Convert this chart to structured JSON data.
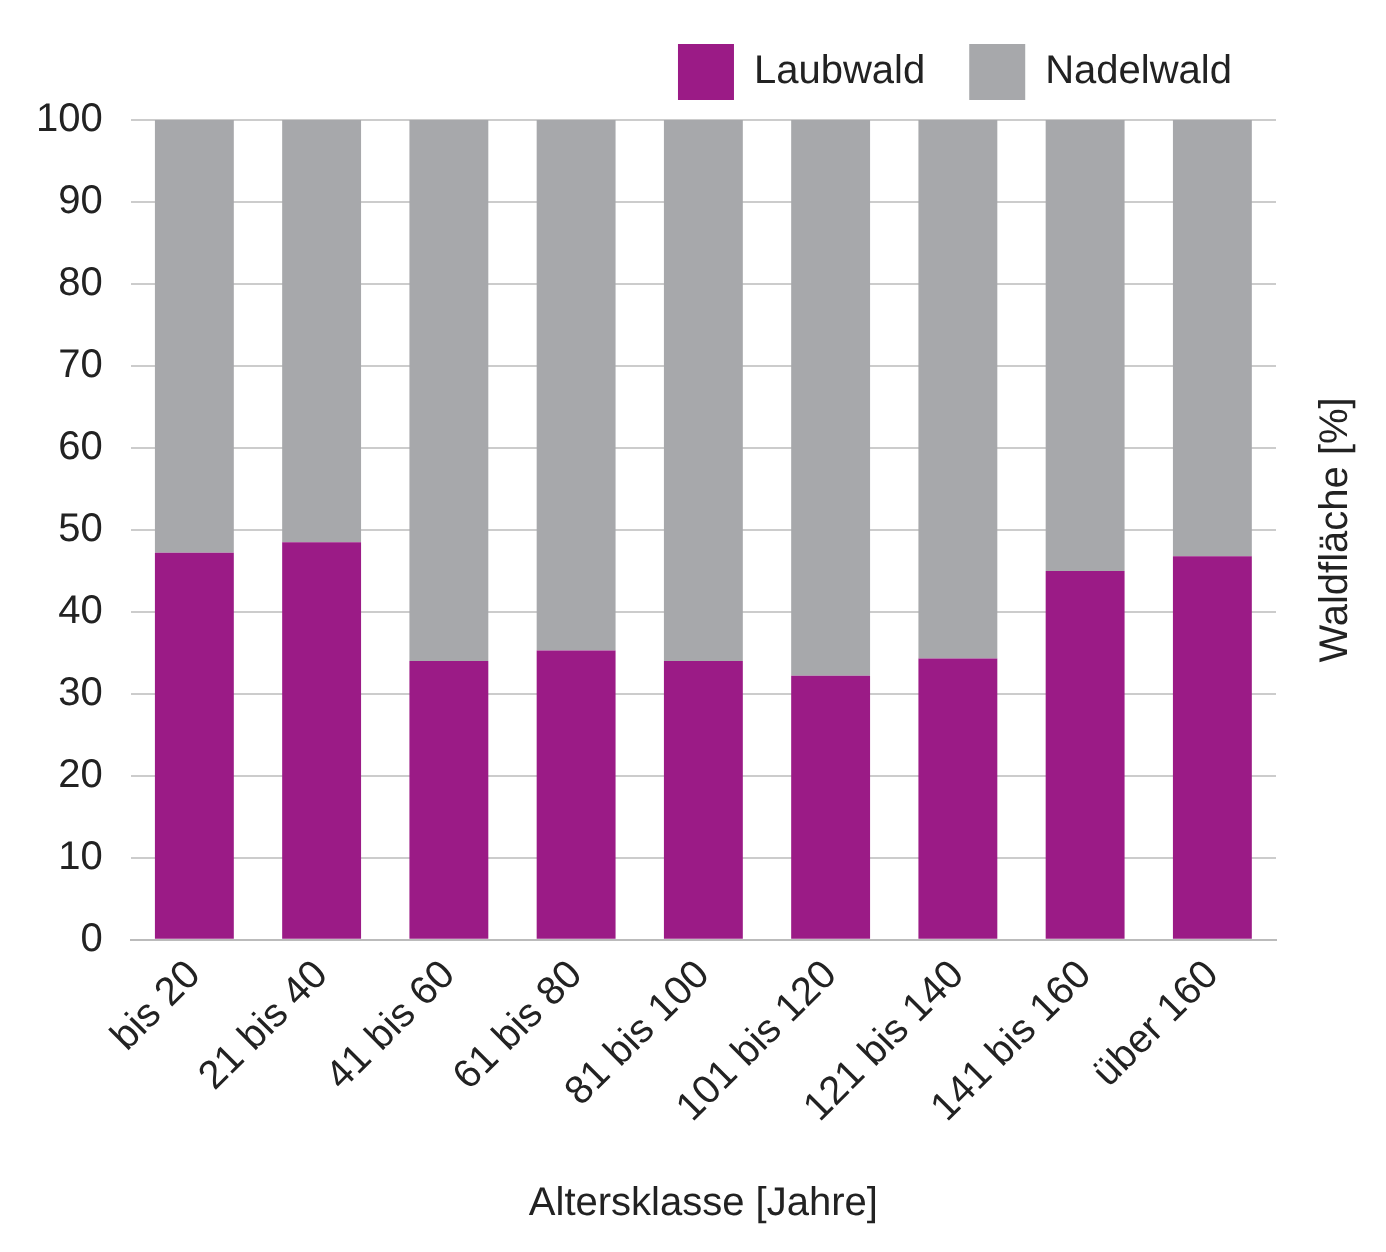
{
  "chart_data": {
    "type": "bar",
    "stacked": true,
    "xlabel": "Altersklasse [Jahre]",
    "ylabel": "Waldfläche [%]",
    "categories": [
      "bis 20",
      "21 bis 40",
      "41 bis 60",
      "61 bis 80",
      "81 bis 100",
      "101 bis 120",
      "121 bis 140",
      "141 bis 160",
      "über 160"
    ],
    "series": [
      {
        "name": "Laubwald",
        "color": "#9b1b86",
        "values": [
          47.2,
          48.5,
          34.0,
          35.3,
          34.0,
          32.2,
          34.3,
          45.0,
          46.8
        ]
      },
      {
        "name": "Nadelwald",
        "color": "#a7a8ab",
        "values": [
          52.8,
          51.5,
          66.0,
          64.7,
          66.0,
          67.8,
          65.7,
          55.0,
          53.2
        ]
      }
    ],
    "ylim": [
      0,
      100
    ],
    "yticks": [
      0,
      10,
      20,
      30,
      40,
      50,
      60,
      70,
      80,
      90,
      100
    ],
    "grid": "y",
    "legend": "top right"
  }
}
